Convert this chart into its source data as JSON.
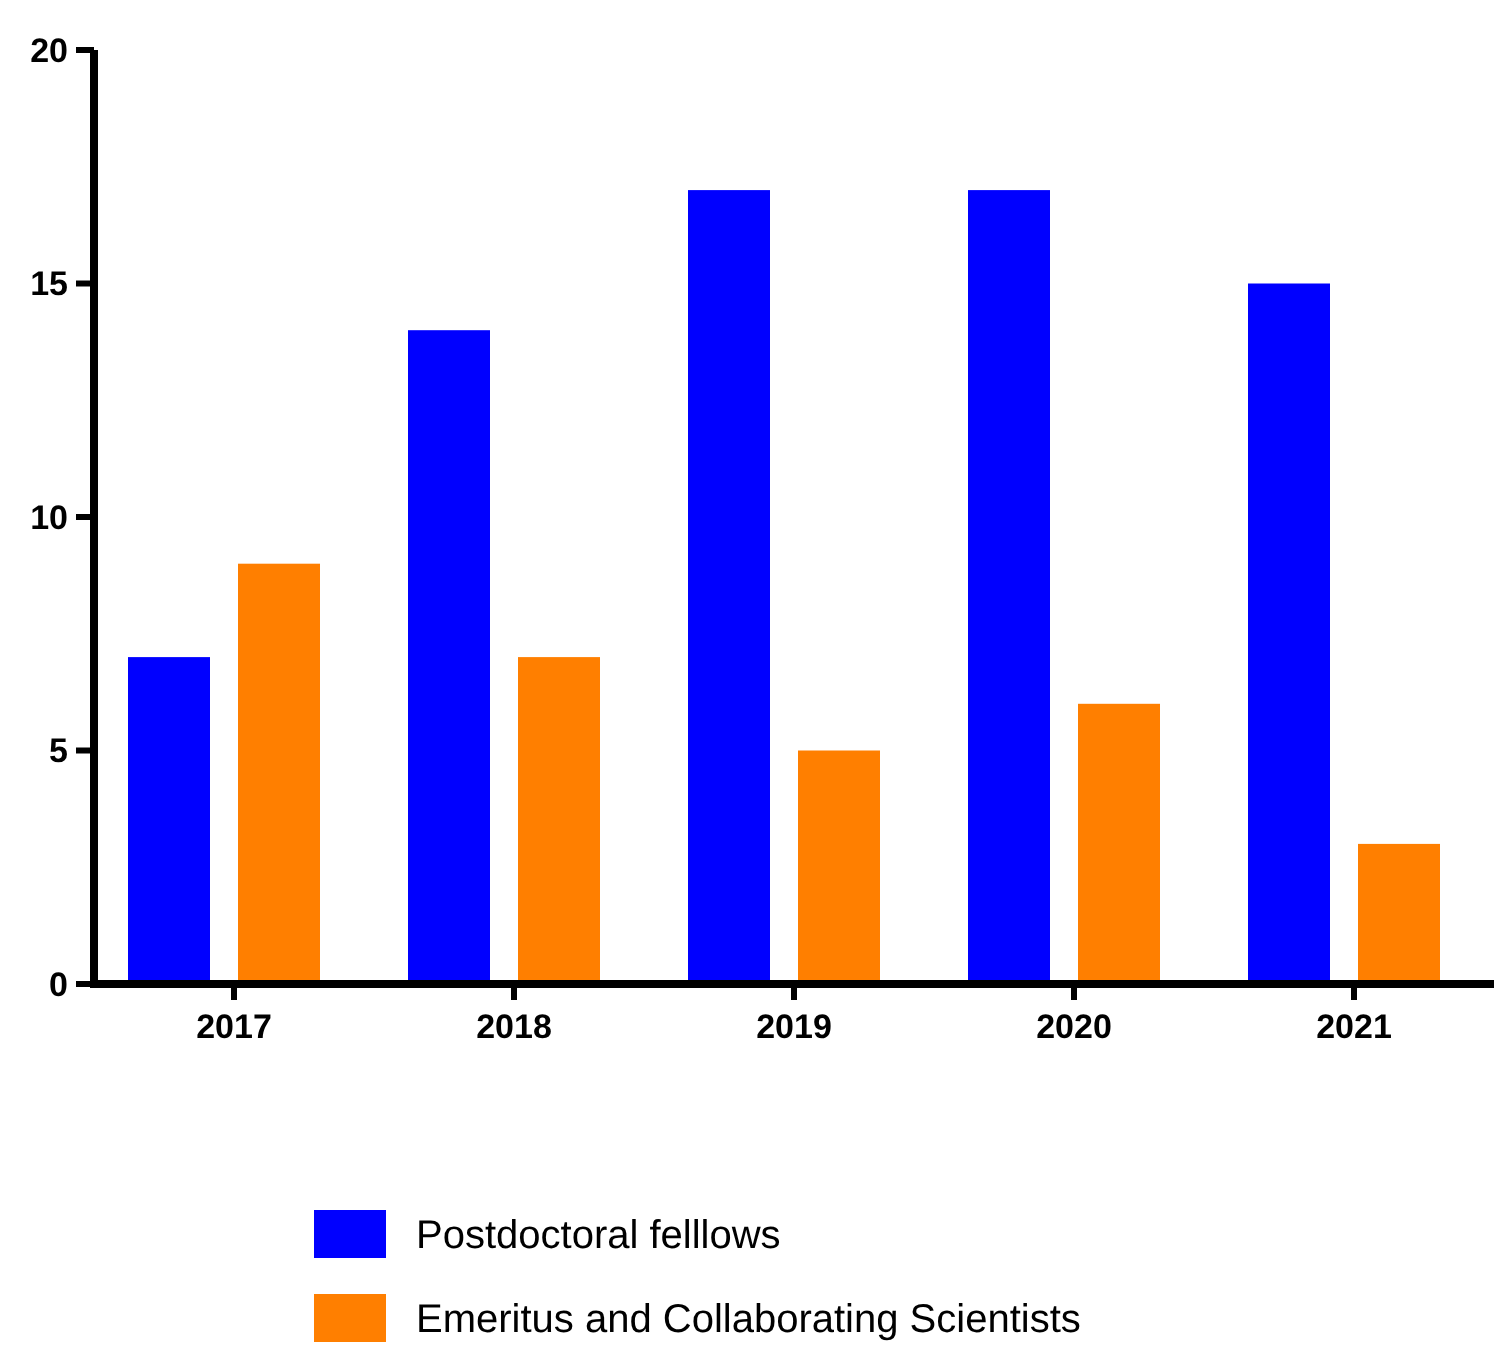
{
  "chart_data": {
    "type": "bar",
    "categories": [
      "2017",
      "2018",
      "2019",
      "2020",
      "2021"
    ],
    "series": [
      {
        "name": "Postdoctoral felllows",
        "color": "#0000ff",
        "values": [
          7,
          14,
          17,
          17,
          15
        ]
      },
      {
        "name": "Emeritus and Collaborating Scientists",
        "color": "#ff7f00",
        "values": [
          9,
          7,
          5,
          6,
          3
        ]
      }
    ],
    "ylim": [
      0,
      20
    ],
    "yticks": [
      0,
      5,
      10,
      15,
      20
    ],
    "grid": false,
    "legend": "bottom"
  }
}
